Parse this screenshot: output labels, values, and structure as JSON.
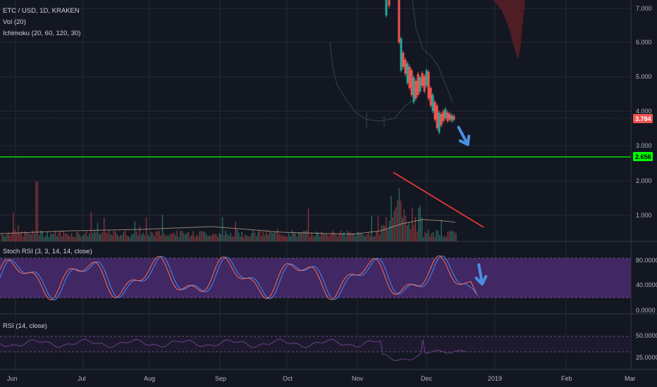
{
  "symbol": {
    "title": "ETC / USD, 1D, KRAKEN",
    "indicators": [
      "Vol (20)",
      "Ichimoku (20, 60, 120, 30)"
    ]
  },
  "panes": {
    "stoch_rsi_label": "Stoch RSI (3, 3, 14, 14, close)",
    "rsi_label": "RSI (14, close)"
  },
  "price_axis": {
    "ticks": [
      "7.000",
      "6.000",
      "5.000",
      "4.000",
      "3.000",
      "2.000",
      "1.000"
    ],
    "last_price_tag": "3.784",
    "level_tag": "2.656"
  },
  "stoch_axis": {
    "ticks": [
      "80.0000",
      "40.0000",
      "0.0000"
    ]
  },
  "rsi_axis": {
    "ticks": [
      "50.0000",
      "25.0000"
    ]
  },
  "time_axis": {
    "labels": [
      "Jun",
      "Jul",
      "Aug",
      "Sep",
      "Oct",
      "Nov",
      "Dec",
      "2019",
      "Feb",
      "Mar"
    ]
  },
  "colors": {
    "background": "#131722",
    "grid": "#242836",
    "up": "#26a69a",
    "down": "#ef5350",
    "level_line": "#00ff00",
    "trend_line": "#e53935",
    "arrow": "#4a90e2",
    "stoch_band": "#4a2a6e"
  },
  "chart_data": {
    "type": "candlestick",
    "price_range": [
      0,
      7.4
    ],
    "last_price": 3.784,
    "horizontal_level": 2.656,
    "stoch_rsi_range": [
      0,
      100
    ],
    "stoch_rsi_bands": [
      20,
      80
    ],
    "rsi_range": [
      0,
      100
    ]
  }
}
